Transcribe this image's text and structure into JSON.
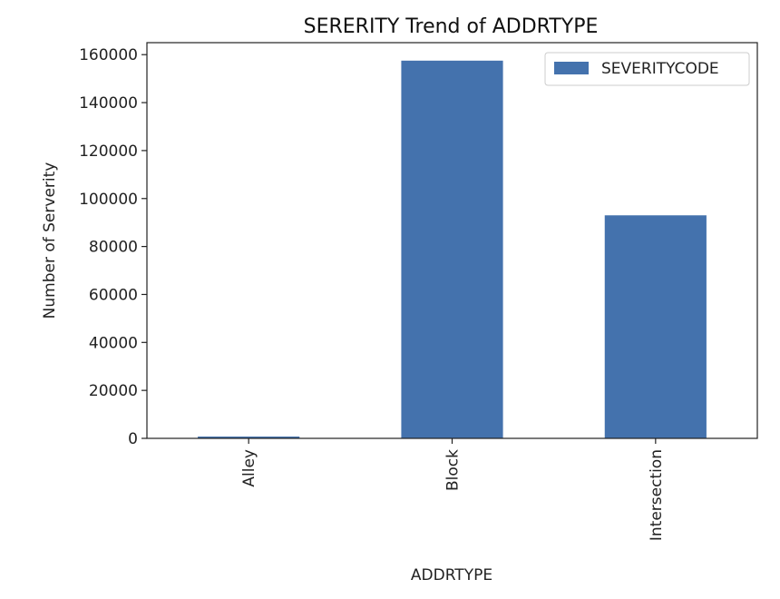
{
  "chart_data": {
    "type": "bar",
    "title": "SERERITY Trend of ADDRTYPE",
    "xlabel": "ADDRTYPE",
    "ylabel": "Number of Serverity",
    "categories": [
      "Alley",
      "Block",
      "Intersection"
    ],
    "series": [
      {
        "name": "SEVERITYCODE",
        "values": [
          750,
          157500,
          93000
        ]
      }
    ],
    "ylim": [
      0,
      165000
    ],
    "yticks": [
      0,
      20000,
      40000,
      60000,
      80000,
      100000,
      120000,
      140000,
      160000
    ],
    "grid": false,
    "legend": "top-right",
    "colors": {
      "bar": "#4472ad",
      "axis": "#222222"
    }
  }
}
